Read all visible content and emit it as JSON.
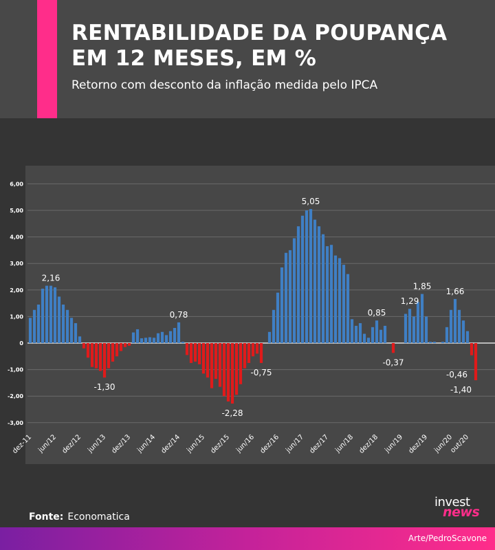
{
  "header": {
    "title_line1": "RENTABILIDADE DA POUPANÇA",
    "title_line2": "EM 12 MESES, EM %",
    "subtitle": "Retorno com desconto da inflação medida pelo IPCA"
  },
  "footer": {
    "source_label": "Fonte:",
    "source_value": "Economatica",
    "credit": "Arte/PedroScavone",
    "logo_top": "invest",
    "logo_bottom": "news"
  },
  "colors": {
    "positive": "#3f7fc4",
    "negative": "#e01b1b",
    "accent": "#ff2d8a"
  },
  "chart_data": {
    "type": "bar",
    "title": "RENTABILIDADE DA POUPANÇA EM 12 MESES, EM %",
    "subtitle": "Retorno com desconto da inflação medida pelo IPCA",
    "ylim": [
      -3,
      6
    ],
    "yticks": [
      "6,00",
      "5,00",
      "4,00",
      "3,00",
      "2,00",
      "1,00",
      "0",
      "-1,00",
      "-2,00",
      "-3,00"
    ],
    "ytick_values": [
      6,
      5,
      4,
      3,
      2,
      1,
      0,
      -1,
      -2,
      -3
    ],
    "grid": true,
    "xtick_labels": [
      "dez-11",
      "jun/12",
      "dez/12",
      "jun/13",
      "dez/13",
      "jun/14",
      "dez/14",
      "jun/15",
      "dez/15",
      "jun/16",
      "dez/16",
      "jun/17",
      "dez/17",
      "jun/18",
      "dez/18",
      "jun/19",
      "dez/19",
      "jun/20",
      "out/20"
    ],
    "xtick_index": [
      0,
      6,
      12,
      18,
      24,
      30,
      36,
      42,
      48,
      54,
      60,
      66,
      72,
      78,
      84,
      90,
      96,
      102,
      106
    ],
    "values": [
      0.95,
      1.25,
      1.45,
      2.05,
      2.16,
      2.16,
      2.1,
      1.75,
      1.45,
      1.25,
      0.95,
      0.75,
      0.25,
      -0.2,
      -0.55,
      -0.9,
      -0.95,
      -1.05,
      -1.3,
      -0.95,
      -0.7,
      -0.5,
      -0.3,
      -0.15,
      -0.1,
      0.4,
      0.52,
      0.18,
      0.2,
      0.22,
      0.2,
      0.37,
      0.42,
      0.3,
      0.45,
      0.57,
      0.78,
      0.05,
      -0.45,
      -0.75,
      -0.7,
      -0.8,
      -1.15,
      -1.3,
      -1.7,
      -1.35,
      -1.65,
      -2.0,
      -2.2,
      -2.28,
      -1.95,
      -1.55,
      -0.95,
      -0.75,
      -0.5,
      -0.4,
      -0.75,
      0.0,
      0.42,
      1.25,
      1.9,
      2.85,
      3.4,
      3.5,
      3.95,
      4.4,
      4.8,
      5.0,
      5.05,
      4.65,
      4.4,
      4.1,
      3.65,
      3.7,
      3.3,
      3.2,
      2.95,
      2.6,
      0.9,
      0.65,
      0.75,
      0.35,
      0.2,
      0.6,
      0.85,
      0.5,
      0.65,
      0.0,
      -0.37,
      0.0,
      0.0,
      1.1,
      1.29,
      1.0,
      1.55,
      1.85,
      1.0,
      0.05,
      0.05,
      0.0,
      0.05,
      0.6,
      1.25,
      1.66,
      1.25,
      0.85,
      0.45,
      -0.46,
      -1.4
    ],
    "annotations": [
      {
        "index": 5,
        "text": "2,16",
        "pos": "above"
      },
      {
        "index": 18,
        "text": "-1,30",
        "pos": "below"
      },
      {
        "index": 36,
        "text": "0,78",
        "pos": "above"
      },
      {
        "index": 49,
        "text": "-2,28",
        "pos": "below"
      },
      {
        "index": 56,
        "text": "-0,75",
        "pos": "below"
      },
      {
        "index": 68,
        "text": "5,05",
        "pos": "above"
      },
      {
        "index": 84,
        "text": "0,85",
        "pos": "above"
      },
      {
        "index": 88,
        "text": "-0,37",
        "pos": "below"
      },
      {
        "index": 92,
        "text": "1,29",
        "pos": "above"
      },
      {
        "index": 95,
        "text": "1,85",
        "pos": "above"
      },
      {
        "index": 103,
        "text": "1,66",
        "pos": "above"
      },
      {
        "index": 107,
        "text": "-0,46",
        "pos": "leftabove"
      },
      {
        "index": 108,
        "text": "-1,40",
        "pos": "leftbelow"
      }
    ]
  }
}
